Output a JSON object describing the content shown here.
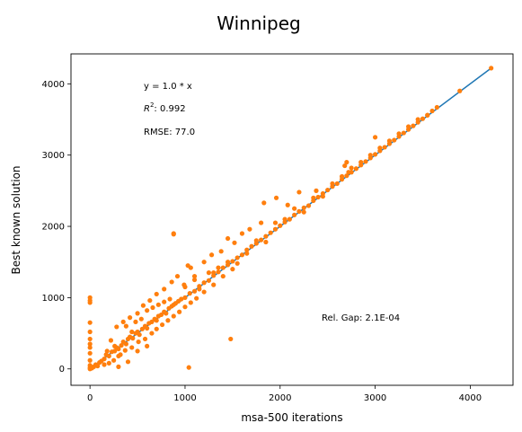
{
  "chart_data": {
    "type": "scatter",
    "title": "Winnipeg",
    "xlabel": "msa-500 iterations",
    "ylabel": "Best known solution",
    "xlim": [
      -200,
      4450
    ],
    "ylim": [
      -230,
      4420
    ],
    "xticks": [
      0,
      1000,
      2000,
      3000,
      4000
    ],
    "yticks": [
      0,
      1000,
      2000,
      3000,
      4000
    ],
    "grid": false,
    "colors": {
      "fit_line": "#1f77b4",
      "points": "#ff7f0e"
    },
    "annotations": {
      "equation": "y = 1.0 * x",
      "r2_prefix": "R",
      "r2_sup": "2",
      "r2_value": ":  0.992",
      "rmse": "RMSE: 77.0",
      "rel_gap": "Rel. Gap: 2.1E-04"
    },
    "fit_line": {
      "slope": 1.0,
      "x": [
        0,
        4220
      ]
    },
    "points": [
      [
        0,
        0
      ],
      [
        0,
        20
      ],
      [
        0,
        50
      ],
      [
        0,
        120
      ],
      [
        0,
        220
      ],
      [
        0,
        300
      ],
      [
        0,
        350
      ],
      [
        0,
        420
      ],
      [
        0,
        520
      ],
      [
        0,
        650
      ],
      [
        0,
        930
      ],
      [
        0,
        1000
      ],
      [
        0,
        960
      ],
      [
        20,
        10
      ],
      [
        40,
        30
      ],
      [
        60,
        60
      ],
      [
        80,
        40
      ],
      [
        100,
        90
      ],
      [
        120,
        110
      ],
      [
        150,
        140
      ],
      [
        170,
        200
      ],
      [
        200,
        180
      ],
      [
        230,
        240
      ],
      [
        260,
        250
      ],
      [
        280,
        300
      ],
      [
        300,
        280
      ],
      [
        330,
        330
      ],
      [
        350,
        380
      ],
      [
        380,
        350
      ],
      [
        400,
        420
      ],
      [
        420,
        450
      ],
      [
        450,
        430
      ],
      [
        480,
        500
      ],
      [
        500,
        520
      ],
      [
        520,
        480
      ],
      [
        550,
        560
      ],
      [
        580,
        600
      ],
      [
        600,
        570
      ],
      [
        620,
        640
      ],
      [
        650,
        660
      ],
      [
        680,
        700
      ],
      [
        700,
        680
      ],
      [
        720,
        740
      ],
      [
        750,
        760
      ],
      [
        780,
        800
      ],
      [
        800,
        780
      ],
      [
        830,
        850
      ],
      [
        860,
        880
      ],
      [
        880,
        900
      ],
      [
        900,
        920
      ],
      [
        930,
        950
      ],
      [
        960,
        980
      ],
      [
        1000,
        1000
      ],
      [
        1050,
        1060
      ],
      [
        1100,
        1090
      ],
      [
        1150,
        1160
      ],
      [
        1200,
        1210
      ],
      [
        1250,
        1240
      ],
      [
        1300,
        1310
      ],
      [
        1350,
        1360
      ],
      [
        1400,
        1420
      ],
      [
        1450,
        1460
      ],
      [
        1500,
        1510
      ],
      [
        1550,
        1560
      ],
      [
        1600,
        1600
      ],
      [
        1650,
        1670
      ],
      [
        1700,
        1720
      ],
      [
        1750,
        1760
      ],
      [
        1800,
        1810
      ],
      [
        1850,
        1860
      ],
      [
        1900,
        1910
      ],
      [
        1950,
        1960
      ],
      [
        2000,
        2010
      ],
      [
        2050,
        2060
      ],
      [
        2100,
        2100
      ],
      [
        2150,
        2160
      ],
      [
        2200,
        2210
      ],
      [
        2250,
        2260
      ],
      [
        2300,
        2290
      ],
      [
        2350,
        2360
      ],
      [
        2400,
        2410
      ],
      [
        2450,
        2460
      ],
      [
        2500,
        2510
      ],
      [
        2550,
        2560
      ],
      [
        2600,
        2600
      ],
      [
        2650,
        2660
      ],
      [
        2700,
        2710
      ],
      [
        2750,
        2760
      ],
      [
        2800,
        2810
      ],
      [
        2850,
        2860
      ],
      [
        2900,
        2910
      ],
      [
        2950,
        2960
      ],
      [
        3000,
        3010
      ],
      [
        3050,
        3060
      ],
      [
        3100,
        3110
      ],
      [
        3150,
        3160
      ],
      [
        3200,
        3210
      ],
      [
        3250,
        3260
      ],
      [
        3300,
        3310
      ],
      [
        3350,
        3360
      ],
      [
        3400,
        3410
      ],
      [
        3450,
        3460
      ],
      [
        3500,
        3510
      ],
      [
        3550,
        3560
      ],
      [
        3600,
        3620
      ],
      [
        3650,
        3670
      ],
      [
        3890,
        3900
      ],
      [
        4220,
        4220
      ],
      [
        280,
        590
      ],
      [
        350,
        660
      ],
      [
        420,
        720
      ],
      [
        500,
        780
      ],
      [
        560,
        890
      ],
      [
        630,
        960
      ],
      [
        700,
        1050
      ],
      [
        780,
        1120
      ],
      [
        860,
        1220
      ],
      [
        920,
        1300
      ],
      [
        990,
        1180
      ],
      [
        1030,
        1450
      ],
      [
        1060,
        1420
      ],
      [
        880,
        1900
      ],
      [
        880,
        1890
      ],
      [
        1100,
        1300
      ],
      [
        1200,
        1500
      ],
      [
        1280,
        1600
      ],
      [
        1300,
        1350
      ],
      [
        1380,
        1650
      ],
      [
        1450,
        1830
      ],
      [
        1520,
        1770
      ],
      [
        1600,
        1900
      ],
      [
        1680,
        1960
      ],
      [
        1800,
        2050
      ],
      [
        1830,
        2330
      ],
      [
        1960,
        2400
      ],
      [
        2080,
        2300
      ],
      [
        2200,
        2480
      ],
      [
        2380,
        2500
      ],
      [
        2680,
        2850
      ],
      [
        2700,
        2900
      ],
      [
        2720,
        2760
      ],
      [
        3000,
        3250
      ],
      [
        1480,
        420
      ],
      [
        1040,
        20
      ],
      [
        200,
        80
      ],
      [
        250,
        120
      ],
      [
        300,
        180
      ],
      [
        370,
        260
      ],
      [
        440,
        300
      ],
      [
        510,
        380
      ],
      [
        580,
        420
      ],
      [
        650,
        500
      ],
      [
        700,
        560
      ],
      [
        760,
        620
      ],
      [
        820,
        680
      ],
      [
        880,
        740
      ],
      [
        940,
        800
      ],
      [
        1000,
        870
      ],
      [
        1060,
        930
      ],
      [
        1120,
        990
      ],
      [
        1200,
        1080
      ],
      [
        1300,
        1180
      ],
      [
        1400,
        1300
      ],
      [
        1500,
        1400
      ],
      [
        300,
        30
      ],
      [
        400,
        100
      ],
      [
        500,
        250
      ],
      [
        600,
        320
      ],
      [
        150,
        60
      ],
      [
        180,
        250
      ],
      [
        220,
        400
      ],
      [
        260,
        320
      ],
      [
        320,
        200
      ],
      [
        380,
        600
      ],
      [
        440,
        520
      ],
      [
        480,
        660
      ],
      [
        540,
        700
      ],
      [
        600,
        820
      ],
      [
        660,
        860
      ],
      [
        720,
        900
      ],
      [
        780,
        940
      ],
      [
        840,
        980
      ],
      [
        1000,
        1150
      ],
      [
        1100,
        1250
      ],
      [
        1150,
        1120
      ],
      [
        1250,
        1350
      ],
      [
        1350,
        1420
      ],
      [
        1450,
        1500
      ],
      [
        1550,
        1480
      ],
      [
        1650,
        1620
      ],
      [
        1750,
        1800
      ],
      [
        1850,
        1780
      ],
      [
        1950,
        2050
      ],
      [
        2050,
        2100
      ],
      [
        2150,
        2250
      ],
      [
        2250,
        2200
      ],
      [
        2350,
        2400
      ],
      [
        2450,
        2420
      ],
      [
        2550,
        2600
      ],
      [
        2650,
        2700
      ],
      [
        2750,
        2820
      ],
      [
        2850,
        2900
      ],
      [
        2950,
        3000
      ],
      [
        3050,
        3100
      ],
      [
        3150,
        3200
      ],
      [
        3250,
        3300
      ],
      [
        3350,
        3400
      ],
      [
        3450,
        3500
      ],
      [
        3550,
        3560
      ]
    ]
  }
}
